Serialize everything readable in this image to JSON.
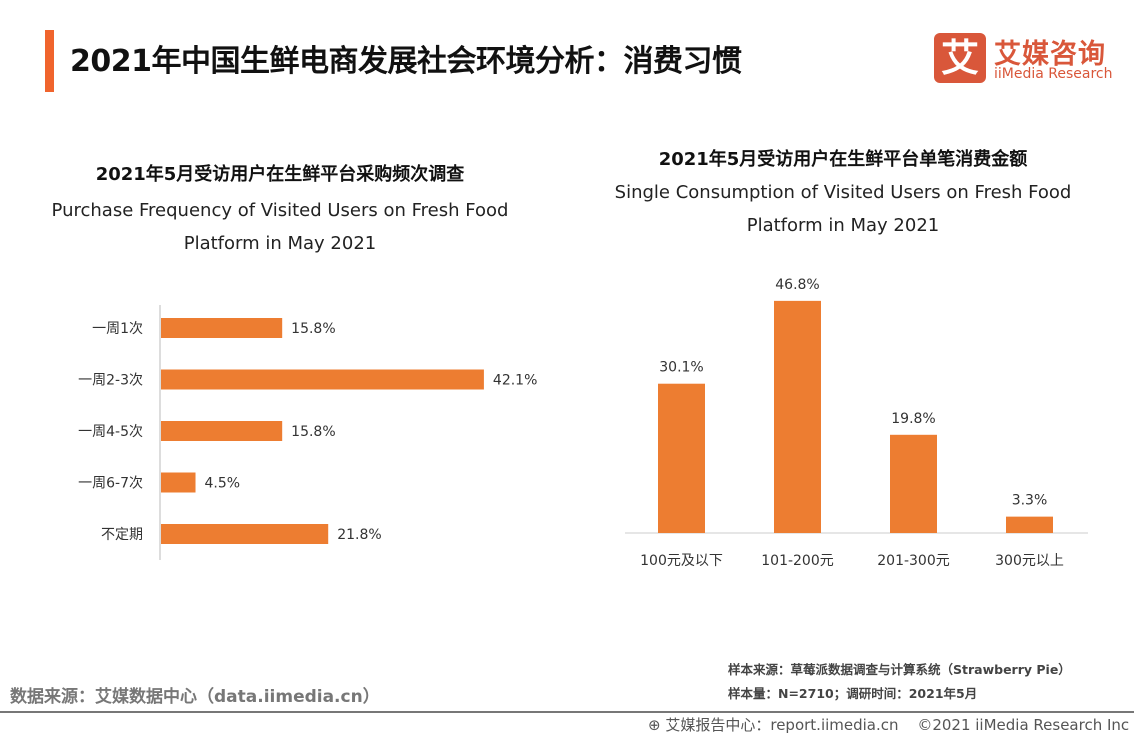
{
  "header": {
    "title": "2021年中国生鲜电商发展社会环境分析：消费习惯",
    "logo_mark": "艾",
    "logo_cn": "艾媒咨询",
    "logo_en": "iiMedia Research"
  },
  "colors": {
    "bar": "#ED7D31",
    "accent": "#F0642D",
    "brand": "#D9573A"
  },
  "chart_data": [
    {
      "type": "bar",
      "orientation": "horizontal",
      "title": "2021年5月受访用户在生鲜平台采购频次调查",
      "subtitle_line1": "Purchase Frequency of Visited Users on Fresh Food",
      "subtitle_line2": "Platform in May 2021",
      "categories": [
        "一周1次",
        "一周2-3次",
        "一周4-5次",
        "一周6-7次",
        "不定期"
      ],
      "values": [
        15.8,
        42.1,
        15.8,
        4.5,
        21.8
      ],
      "labels": [
        "15.8%",
        "42.1%",
        "15.8%",
        "4.5%",
        "21.8%"
      ],
      "unit": "%"
    },
    {
      "type": "bar",
      "orientation": "vertical",
      "title": "2021年5月受访用户在生鲜平台单笔消费金额",
      "subtitle_line1": "Single Consumption of Visited Users on Fresh Food",
      "subtitle_line2": "Platform in May 2021",
      "categories": [
        "100元及以下",
        "101-200元",
        "201-300元",
        "300元以上"
      ],
      "values": [
        30.1,
        46.8,
        19.8,
        3.3
      ],
      "labels": [
        "30.1%",
        "46.8%",
        "19.8%",
        "3.3%"
      ],
      "unit": "%"
    }
  ],
  "footer": {
    "source": "数据来源：艾媒数据中心（data.iimedia.cn）",
    "sample_source": "样本来源：草莓派数据调查与计算系统（Strawberry Pie）",
    "sample_size": "样本量：N=2710；调研时间：2021年5月",
    "report_center": "艾媒报告中心：report.iimedia.cn",
    "copyright": "©2021  iiMedia Research  Inc"
  }
}
